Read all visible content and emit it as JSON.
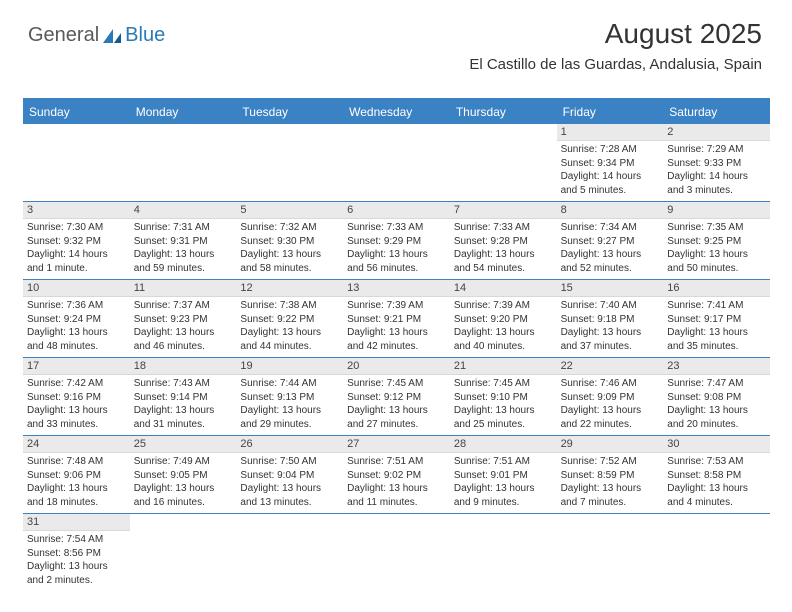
{
  "logo": {
    "text1": "General",
    "text2": "Blue"
  },
  "header": {
    "title": "August 2025",
    "location": "El Castillo de las Guardas, Andalusia, Spain"
  },
  "colors": {
    "header_bg": "#3b82c4",
    "header_text": "#ffffff",
    "rule": "#3b82c4",
    "daynum_bg": "#eaeaea",
    "text": "#333333",
    "logo_gray": "#5a5a5a",
    "logo_blue": "#2a7ab8"
  },
  "calendar": {
    "day_names": [
      "Sunday",
      "Monday",
      "Tuesday",
      "Wednesday",
      "Thursday",
      "Friday",
      "Saturday"
    ],
    "weeks": [
      [
        null,
        null,
        null,
        null,
        null,
        {
          "n": "1",
          "sr": "Sunrise: 7:28 AM",
          "ss": "Sunset: 9:34 PM",
          "dl": "Daylight: 14 hours and 5 minutes."
        },
        {
          "n": "2",
          "sr": "Sunrise: 7:29 AM",
          "ss": "Sunset: 9:33 PM",
          "dl": "Daylight: 14 hours and 3 minutes."
        }
      ],
      [
        {
          "n": "3",
          "sr": "Sunrise: 7:30 AM",
          "ss": "Sunset: 9:32 PM",
          "dl": "Daylight: 14 hours and 1 minute."
        },
        {
          "n": "4",
          "sr": "Sunrise: 7:31 AM",
          "ss": "Sunset: 9:31 PM",
          "dl": "Daylight: 13 hours and 59 minutes."
        },
        {
          "n": "5",
          "sr": "Sunrise: 7:32 AM",
          "ss": "Sunset: 9:30 PM",
          "dl": "Daylight: 13 hours and 58 minutes."
        },
        {
          "n": "6",
          "sr": "Sunrise: 7:33 AM",
          "ss": "Sunset: 9:29 PM",
          "dl": "Daylight: 13 hours and 56 minutes."
        },
        {
          "n": "7",
          "sr": "Sunrise: 7:33 AM",
          "ss": "Sunset: 9:28 PM",
          "dl": "Daylight: 13 hours and 54 minutes."
        },
        {
          "n": "8",
          "sr": "Sunrise: 7:34 AM",
          "ss": "Sunset: 9:27 PM",
          "dl": "Daylight: 13 hours and 52 minutes."
        },
        {
          "n": "9",
          "sr": "Sunrise: 7:35 AM",
          "ss": "Sunset: 9:25 PM",
          "dl": "Daylight: 13 hours and 50 minutes."
        }
      ],
      [
        {
          "n": "10",
          "sr": "Sunrise: 7:36 AM",
          "ss": "Sunset: 9:24 PM",
          "dl": "Daylight: 13 hours and 48 minutes."
        },
        {
          "n": "11",
          "sr": "Sunrise: 7:37 AM",
          "ss": "Sunset: 9:23 PM",
          "dl": "Daylight: 13 hours and 46 minutes."
        },
        {
          "n": "12",
          "sr": "Sunrise: 7:38 AM",
          "ss": "Sunset: 9:22 PM",
          "dl": "Daylight: 13 hours and 44 minutes."
        },
        {
          "n": "13",
          "sr": "Sunrise: 7:39 AM",
          "ss": "Sunset: 9:21 PM",
          "dl": "Daylight: 13 hours and 42 minutes."
        },
        {
          "n": "14",
          "sr": "Sunrise: 7:39 AM",
          "ss": "Sunset: 9:20 PM",
          "dl": "Daylight: 13 hours and 40 minutes."
        },
        {
          "n": "15",
          "sr": "Sunrise: 7:40 AM",
          "ss": "Sunset: 9:18 PM",
          "dl": "Daylight: 13 hours and 37 minutes."
        },
        {
          "n": "16",
          "sr": "Sunrise: 7:41 AM",
          "ss": "Sunset: 9:17 PM",
          "dl": "Daylight: 13 hours and 35 minutes."
        }
      ],
      [
        {
          "n": "17",
          "sr": "Sunrise: 7:42 AM",
          "ss": "Sunset: 9:16 PM",
          "dl": "Daylight: 13 hours and 33 minutes."
        },
        {
          "n": "18",
          "sr": "Sunrise: 7:43 AM",
          "ss": "Sunset: 9:14 PM",
          "dl": "Daylight: 13 hours and 31 minutes."
        },
        {
          "n": "19",
          "sr": "Sunrise: 7:44 AM",
          "ss": "Sunset: 9:13 PM",
          "dl": "Daylight: 13 hours and 29 minutes."
        },
        {
          "n": "20",
          "sr": "Sunrise: 7:45 AM",
          "ss": "Sunset: 9:12 PM",
          "dl": "Daylight: 13 hours and 27 minutes."
        },
        {
          "n": "21",
          "sr": "Sunrise: 7:45 AM",
          "ss": "Sunset: 9:10 PM",
          "dl": "Daylight: 13 hours and 25 minutes."
        },
        {
          "n": "22",
          "sr": "Sunrise: 7:46 AM",
          "ss": "Sunset: 9:09 PM",
          "dl": "Daylight: 13 hours and 22 minutes."
        },
        {
          "n": "23",
          "sr": "Sunrise: 7:47 AM",
          "ss": "Sunset: 9:08 PM",
          "dl": "Daylight: 13 hours and 20 minutes."
        }
      ],
      [
        {
          "n": "24",
          "sr": "Sunrise: 7:48 AM",
          "ss": "Sunset: 9:06 PM",
          "dl": "Daylight: 13 hours and 18 minutes."
        },
        {
          "n": "25",
          "sr": "Sunrise: 7:49 AM",
          "ss": "Sunset: 9:05 PM",
          "dl": "Daylight: 13 hours and 16 minutes."
        },
        {
          "n": "26",
          "sr": "Sunrise: 7:50 AM",
          "ss": "Sunset: 9:04 PM",
          "dl": "Daylight: 13 hours and 13 minutes."
        },
        {
          "n": "27",
          "sr": "Sunrise: 7:51 AM",
          "ss": "Sunset: 9:02 PM",
          "dl": "Daylight: 13 hours and 11 minutes."
        },
        {
          "n": "28",
          "sr": "Sunrise: 7:51 AM",
          "ss": "Sunset: 9:01 PM",
          "dl": "Daylight: 13 hours and 9 minutes."
        },
        {
          "n": "29",
          "sr": "Sunrise: 7:52 AM",
          "ss": "Sunset: 8:59 PM",
          "dl": "Daylight: 13 hours and 7 minutes."
        },
        {
          "n": "30",
          "sr": "Sunrise: 7:53 AM",
          "ss": "Sunset: 8:58 PM",
          "dl": "Daylight: 13 hours and 4 minutes."
        }
      ],
      [
        {
          "n": "31",
          "sr": "Sunrise: 7:54 AM",
          "ss": "Sunset: 8:56 PM",
          "dl": "Daylight: 13 hours and 2 minutes."
        },
        null,
        null,
        null,
        null,
        null,
        null
      ]
    ]
  }
}
